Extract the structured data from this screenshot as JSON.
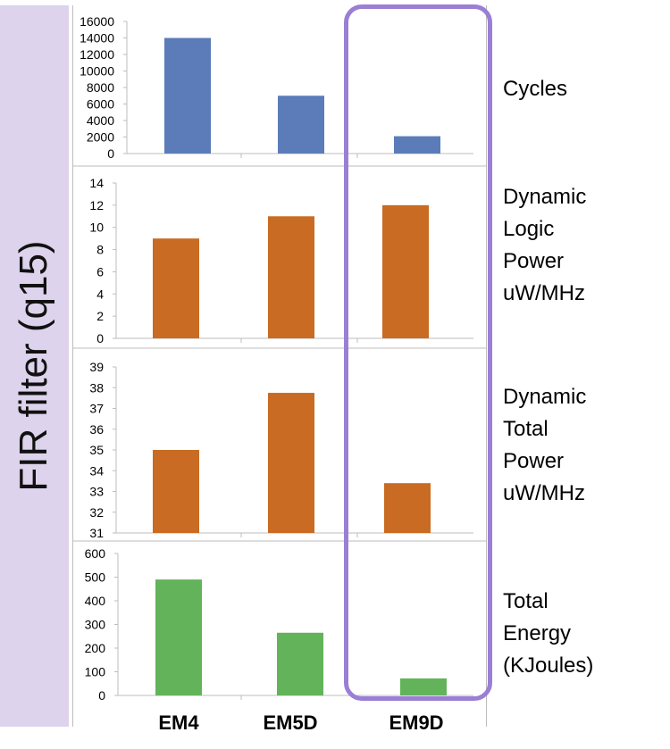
{
  "side_title": "FIR filter (q15)",
  "categories": [
    "EM4",
    "EM5D",
    "EM9D"
  ],
  "colors": {
    "blue": "#5b7cb8",
    "orange": "#c96b22",
    "green": "#63b35a",
    "highlight": "#9b7fd4",
    "band": "#ddd3ec"
  },
  "chart_data": [
    {
      "type": "bar",
      "label": "Cycles",
      "categories": [
        "EM4",
        "EM5D",
        "EM9D"
      ],
      "values": [
        14000,
        7000,
        2100
      ],
      "ylim": [
        0,
        16000
      ],
      "ticks": [
        "0",
        "2000",
        "4000",
        "6000",
        "8000",
        "10000",
        "12000",
        "14000",
        "16000"
      ],
      "color": "#5b7cb8"
    },
    {
      "type": "bar",
      "label": "Dynamic\nLogic\nPower\nuW/MHz",
      "categories": [
        "EM4",
        "EM5D",
        "EM9D"
      ],
      "values": [
        9,
        11,
        12
      ],
      "ylim": [
        0,
        14
      ],
      "ticks": [
        "0",
        "2",
        "4",
        "6",
        "8",
        "10",
        "12",
        "14"
      ],
      "color": "#c96b22"
    },
    {
      "type": "bar",
      "label": "Dynamic\nTotal\nPower\nuW/MHz",
      "categories": [
        "EM4",
        "EM5D",
        "EM9D"
      ],
      "values": [
        35,
        37.75,
        33.4
      ],
      "ylim": [
        31,
        39
      ],
      "ticks": [
        "31",
        "32",
        "33",
        "34",
        "35",
        "36",
        "37",
        "38",
        "39"
      ],
      "color": "#c96b22"
    },
    {
      "type": "bar",
      "label": "Total\nEnergy\n(KJoules)",
      "categories": [
        "EM4",
        "EM5D",
        "EM9D"
      ],
      "values": [
        490,
        265,
        72
      ],
      "ylim": [
        0,
        600
      ],
      "ticks": [
        "0",
        "100",
        "200",
        "300",
        "400",
        "500",
        "600"
      ],
      "color": "#63b35a"
    }
  ]
}
